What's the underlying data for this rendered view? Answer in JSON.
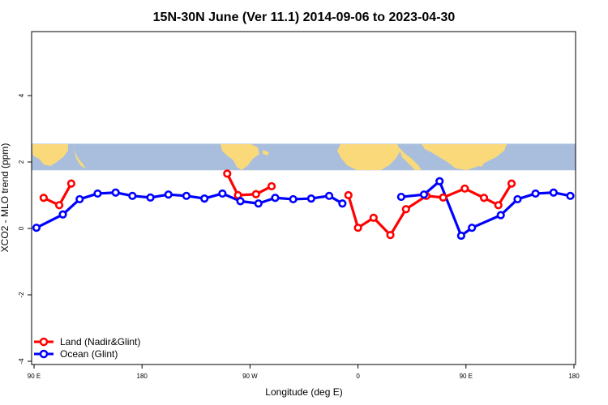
{
  "chart_data": {
    "type": "line",
    "title": "15N-30N June (Ver 11.1)   2014-09-06 to 2023-04-30",
    "xlabel": "Longitude (deg E)",
    "ylabel": "XCO2 - MLO trend (ppm)",
    "xlim": [
      90,
      540
    ],
    "ylim": [
      -4,
      6
    ],
    "x_ticks": [
      {
        "value": 90,
        "label": "90 E"
      },
      {
        "value": 180,
        "label": "180"
      },
      {
        "value": 270,
        "label": "90 W"
      },
      {
        "value": 360,
        "label": "0"
      },
      {
        "value": 450,
        "label": "90 E"
      },
      {
        "value": 540,
        "label": "180"
      }
    ],
    "y_ticks": [
      {
        "value": -4,
        "label": "-4"
      },
      {
        "value": -2,
        "label": "-2"
      },
      {
        "value": 0,
        "label": "0"
      },
      {
        "value": 2,
        "label": "2"
      },
      {
        "value": 4,
        "label": "4"
      }
    ],
    "map_band": {
      "ymin": 1.75,
      "ymax": 2.55,
      "ocean_color": "#A8BEDC",
      "land_color": "#F9D97A"
    },
    "legend": {
      "placement": "bottom-left"
    },
    "series": [
      {
        "name": "Land (Nadir&Glint)",
        "color": "#FF0000",
        "segments": [
          [
            [
              98,
              0.92
            ],
            [
              111,
              0.7
            ],
            [
              121,
              1.35
            ]
          ],
          [
            [
              251,
              1.65
            ],
            [
              260,
              1.0
            ],
            [
              275,
              1.03
            ],
            [
              288,
              1.27
            ]
          ],
          [
            [
              352,
              1.0
            ],
            [
              360,
              0.02
            ],
            [
              373,
              0.32
            ],
            [
              387,
              -0.2
            ],
            [
              400,
              0.58
            ],
            [
              417,
              0.98
            ],
            [
              431,
              0.93
            ],
            [
              449,
              1.2
            ],
            [
              465,
              0.92
            ],
            [
              477,
              0.7
            ],
            [
              488,
              1.35
            ]
          ]
        ]
      },
      {
        "name": "Ocean (Glint)",
        "color": "#0000FF",
        "segments": [
          [
            [
              92,
              0.02
            ],
            [
              114,
              0.42
            ],
            [
              128,
              0.88
            ],
            [
              143,
              1.05
            ],
            [
              158,
              1.08
            ],
            [
              172,
              0.98
            ],
            [
              187,
              0.93
            ],
            [
              202,
              1.02
            ],
            [
              217,
              0.98
            ],
            [
              232,
              0.9
            ],
            [
              247,
              1.05
            ],
            [
              262,
              0.82
            ],
            [
              277,
              0.75
            ],
            [
              291,
              0.92
            ],
            [
              306,
              0.88
            ],
            [
              321,
              0.9
            ],
            [
              336,
              0.98
            ],
            [
              347,
              0.75
            ]
          ],
          [
            [
              396,
              0.95
            ],
            [
              415,
              1.02
            ],
            [
              428,
              1.42
            ],
            [
              446,
              -0.22
            ],
            [
              455,
              0.02
            ],
            [
              479,
              0.4
            ],
            [
              493,
              0.88
            ],
            [
              508,
              1.05
            ],
            [
              523,
              1.08
            ],
            [
              537,
              0.98
            ]
          ]
        ]
      }
    ]
  }
}
